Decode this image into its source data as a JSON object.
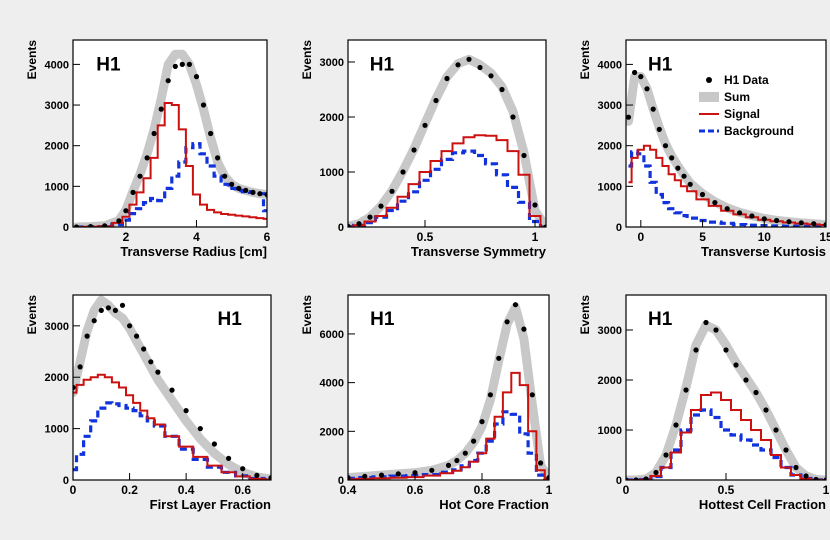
{
  "colors": {
    "data": "#000000",
    "sum": "#c8c8c8",
    "signal": "#cc1111",
    "background": "#1133dd",
    "frame": "#000000",
    "figure_bg": "#eeeeee",
    "panel_bg": "#ffffff"
  },
  "chart_data": [
    {
      "type": "line",
      "title": "H1",
      "xlabel": "Transverse Radius [cm]",
      "ylabel": "Events",
      "xlim": [
        0.5,
        6.0
      ],
      "ylim": [
        0,
        4600
      ],
      "x_ticks": [
        2,
        4,
        6
      ],
      "x_tick_labels": [
        "2",
        "4",
        "6"
      ],
      "y_ticks": [
        0,
        1000,
        2000,
        3000,
        4000
      ],
      "y_tick_labels": [
        "0",
        "1000",
        "2000",
        "3000",
        "4000"
      ],
      "x": [
        0.6,
        1.0,
        1.4,
        1.8,
        2.0,
        2.2,
        2.4,
        2.6,
        2.8,
        3.0,
        3.2,
        3.4,
        3.6,
        3.8,
        4.0,
        4.2,
        4.4,
        4.6,
        4.8,
        5.0,
        5.2,
        5.4,
        5.6,
        5.8,
        6.0
      ],
      "series": [
        {
          "name": "H1 Data",
          "style": "points",
          "values": [
            0,
            10,
            30,
            150,
            400,
            850,
            1250,
            1700,
            2300,
            2900,
            3600,
            3950,
            4000,
            4000,
            3700,
            3000,
            2300,
            1700,
            1250,
            1050,
            950,
            900,
            850,
            820,
            800
          ]
        },
        {
          "name": "Sum",
          "style": "band",
          "values": [
            0,
            10,
            30,
            160,
            420,
            880,
            1300,
            1800,
            2400,
            3150,
            4000,
            4250,
            4250,
            4000,
            3500,
            2900,
            2200,
            1600,
            1250,
            1050,
            950,
            900,
            850,
            820,
            800
          ]
        },
        {
          "name": "Signal",
          "style": "step",
          "values": [
            0,
            5,
            20,
            100,
            250,
            550,
            850,
            1200,
            1700,
            2500,
            3050,
            3000,
            2400,
            1500,
            800,
            550,
            420,
            360,
            320,
            300,
            280,
            260,
            240,
            220,
            200
          ]
        },
        {
          "name": "Background",
          "style": "dashed",
          "values": [
            0,
            5,
            10,
            60,
            170,
            330,
            450,
            600,
            700,
            650,
            950,
            1250,
            1600,
            1950,
            2050,
            1800,
            1500,
            1250,
            1050,
            950,
            900,
            870,
            850,
            820,
            400
          ]
        }
      ]
    },
    {
      "type": "line",
      "title": "H1",
      "xlabel": "Transverse Symmetry",
      "ylabel": "Events",
      "xlim": [
        0.15,
        1.05
      ],
      "ylim": [
        0,
        3400
      ],
      "x_ticks": [
        0.5,
        1.0
      ],
      "x_tick_labels": [
        "0.5",
        "1"
      ],
      "y_ticks": [
        0,
        1000,
        2000,
        3000
      ],
      "y_tick_labels": [
        "0",
        "1000",
        "2000",
        "3000"
      ],
      "x": [
        0.15,
        0.2,
        0.25,
        0.3,
        0.35,
        0.4,
        0.45,
        0.5,
        0.55,
        0.6,
        0.65,
        0.7,
        0.75,
        0.8,
        0.85,
        0.9,
        0.95,
        1.0,
        1.05
      ],
      "series": [
        {
          "name": "H1 Data",
          "style": "points",
          "values": [
            10,
            60,
            180,
            380,
            650,
            1000,
            1400,
            1850,
            2300,
            2700,
            2950,
            3050,
            2900,
            2750,
            2500,
            2000,
            1300,
            400,
            0
          ]
        },
        {
          "name": "Sum",
          "style": "band",
          "values": [
            10,
            60,
            180,
            380,
            660,
            1020,
            1420,
            1880,
            2330,
            2730,
            2970,
            3050,
            2950,
            2800,
            2550,
            2100,
            1350,
            300,
            0
          ]
        },
        {
          "name": "Signal",
          "style": "step",
          "values": [
            5,
            30,
            100,
            200,
            350,
            550,
            780,
            1000,
            1200,
            1380,
            1520,
            1630,
            1670,
            1660,
            1580,
            1380,
            950,
            200,
            0
          ]
        },
        {
          "name": "Background",
          "style": "dashed",
          "values": [
            5,
            30,
            80,
            180,
            300,
            470,
            640,
            850,
            1050,
            1230,
            1350,
            1380,
            1300,
            1150,
            950,
            720,
            450,
            100,
            0
          ]
        }
      ]
    },
    {
      "type": "line",
      "title": "H1",
      "xlabel": "Transverse Kurtosis",
      "ylabel": "Events",
      "xlim": [
        -1.2,
        15.0
      ],
      "ylim": [
        0,
        4600
      ],
      "x_ticks": [
        0,
        5,
        10,
        15
      ],
      "x_tick_labels": [
        "0",
        "5",
        "10",
        "15"
      ],
      "y_ticks": [
        0,
        1000,
        2000,
        3000,
        4000
      ],
      "y_tick_labels": [
        "0",
        "1000",
        "2000",
        "3000",
        "4000"
      ],
      "x": [
        -1.0,
        -0.5,
        0,
        0.5,
        1,
        1.5,
        2,
        2.5,
        3,
        3.5,
        4,
        5,
        6,
        7,
        8,
        9,
        10,
        11,
        12,
        13,
        14,
        15
      ],
      "series": [
        {
          "name": "H1 Data",
          "style": "points",
          "values": [
            2700,
            3800,
            3700,
            3400,
            2900,
            2400,
            2000,
            1700,
            1450,
            1250,
            1050,
            800,
            600,
            450,
            350,
            270,
            200,
            160,
            130,
            100,
            80,
            60
          ]
        },
        {
          "name": "Sum",
          "style": "band",
          "values": [
            2600,
            3700,
            3700,
            3400,
            2900,
            2450,
            2050,
            1750,
            1500,
            1280,
            1080,
            820,
            620,
            470,
            360,
            280,
            210,
            165,
            130,
            100,
            80,
            60
          ]
        },
        {
          "name": "Signal",
          "style": "step",
          "values": [
            1100,
            1700,
            1900,
            2000,
            1900,
            1700,
            1500,
            1300,
            1150,
            1000,
            880,
            680,
            520,
            400,
            310,
            240,
            180,
            140,
            110,
            85,
            65,
            50
          ]
        },
        {
          "name": "Background",
          "style": "dashed",
          "values": [
            1500,
            1850,
            1800,
            1500,
            1100,
            800,
            600,
            450,
            350,
            280,
            220,
            160,
            120,
            90,
            60,
            45,
            35,
            25,
            20,
            15,
            10,
            10
          ]
        }
      ],
      "legend": {
        "position": "top-right",
        "entries": [
          "H1 Data",
          "Sum",
          "Signal",
          "Background"
        ]
      }
    },
    {
      "type": "line",
      "title": "H1",
      "xlabel": "First Layer Fraction",
      "ylabel": "Events",
      "xlim": [
        0,
        0.7
      ],
      "ylim": [
        0,
        3600
      ],
      "x_ticks": [
        0,
        0.2,
        0.4,
        0.6
      ],
      "x_tick_labels": [
        "0",
        "0.2",
        "0.4",
        "0.6"
      ],
      "y_ticks": [
        0,
        1000,
        2000,
        3000
      ],
      "y_tick_labels": [
        "0",
        "1000",
        "2000",
        "3000"
      ],
      "x": [
        0.0,
        0.025,
        0.05,
        0.075,
        0.1,
        0.125,
        0.15,
        0.175,
        0.2,
        0.225,
        0.25,
        0.275,
        0.3,
        0.35,
        0.4,
        0.45,
        0.5,
        0.55,
        0.6,
        0.65,
        0.7
      ],
      "series": [
        {
          "name": "H1 Data",
          "style": "points",
          "values": [
            1800,
            2200,
            2800,
            3100,
            3300,
            3350,
            3300,
            3400,
            3000,
            2800,
            2550,
            2300,
            2100,
            1750,
            1350,
            1000,
            700,
            420,
            220,
            90,
            40
          ]
        },
        {
          "name": "Sum",
          "style": "band",
          "values": [
            1700,
            2300,
            2900,
            3300,
            3500,
            3400,
            3250,
            3150,
            2950,
            2700,
            2450,
            2200,
            1950,
            1550,
            1150,
            800,
            520,
            300,
            150,
            60,
            20
          ]
        },
        {
          "name": "Signal",
          "style": "step",
          "values": [
            1700,
            1850,
            1950,
            2000,
            2050,
            2000,
            1900,
            1800,
            1650,
            1500,
            1350,
            1200,
            1080,
            850,
            650,
            450,
            280,
            150,
            70,
            25,
            10
          ]
        },
        {
          "name": "Background",
          "style": "dashed",
          "values": [
            200,
            500,
            850,
            1150,
            1400,
            1500,
            1480,
            1450,
            1400,
            1350,
            1250,
            1150,
            1050,
            850,
            600,
            400,
            250,
            150,
            80,
            30,
            10
          ]
        }
      ]
    },
    {
      "type": "line",
      "title": "H1",
      "xlabel": "Hot Core Fraction",
      "ylabel": "Events",
      "xlim": [
        0.4,
        1.0
      ],
      "ylim": [
        0,
        7600
      ],
      "x_ticks": [
        0.4,
        0.6,
        0.8,
        1.0
      ],
      "x_tick_labels": [
        "0.4",
        "0.6",
        "0.8",
        "1"
      ],
      "y_ticks": [
        0,
        2000,
        4000,
        6000
      ],
      "y_tick_labels": [
        "0",
        "2000",
        "4000",
        "6000"
      ],
      "x": [
        0.4,
        0.45,
        0.5,
        0.55,
        0.6,
        0.65,
        0.7,
        0.725,
        0.75,
        0.775,
        0.8,
        0.825,
        0.85,
        0.875,
        0.9,
        0.925,
        0.95,
        0.975,
        1.0
      ],
      "series": [
        {
          "name": "H1 Data",
          "style": "points",
          "values": [
            100,
            150,
            200,
            250,
            300,
            400,
            600,
            800,
            1100,
            1600,
            2400,
            3500,
            5000,
            6500,
            7200,
            6200,
            3500,
            700,
            100
          ]
        },
        {
          "name": "Sum",
          "style": "band",
          "values": [
            100,
            150,
            200,
            250,
            300,
            400,
            600,
            800,
            1100,
            1550,
            2200,
            3300,
            4900,
            6400,
            7100,
            5800,
            3100,
            600,
            100
          ]
        },
        {
          "name": "Signal",
          "style": "step",
          "values": [
            30,
            50,
            70,
            90,
            120,
            180,
            280,
            380,
            520,
            750,
            1100,
            1700,
            2600,
            3600,
            4400,
            3900,
            2000,
            400,
            50
          ]
        },
        {
          "name": "Background",
          "style": "dashed",
          "values": [
            70,
            100,
            130,
            160,
            180,
            220,
            320,
            420,
            580,
            800,
            1100,
            1600,
            2300,
            2800,
            2700,
            1900,
            1100,
            200,
            50
          ]
        }
      ]
    },
    {
      "type": "line",
      "title": "H1",
      "xlabel": "Hottest Cell Fraction",
      "ylabel": "Events",
      "xlim": [
        0,
        1.0
      ],
      "ylim": [
        0,
        3700
      ],
      "x_ticks": [
        0,
        0.5,
        1.0
      ],
      "x_tick_labels": [
        "0",
        "0.5",
        "1"
      ],
      "y_ticks": [
        0,
        1000,
        2000,
        3000
      ],
      "y_tick_labels": [
        "0",
        "1000",
        "2000",
        "3000"
      ],
      "x": [
        0.0,
        0.05,
        0.1,
        0.15,
        0.2,
        0.25,
        0.3,
        0.35,
        0.4,
        0.45,
        0.5,
        0.55,
        0.6,
        0.65,
        0.7,
        0.75,
        0.8,
        0.85,
        0.9,
        0.95,
        1.0
      ],
      "series": [
        {
          "name": "H1 Data",
          "style": "points",
          "values": [
            0,
            0,
            20,
            150,
            500,
            1100,
            1800,
            2600,
            3150,
            3000,
            2600,
            2300,
            2000,
            1750,
            1400,
            1000,
            600,
            250,
            80,
            10,
            0
          ]
        },
        {
          "name": "Sum",
          "style": "band",
          "values": [
            0,
            0,
            20,
            150,
            500,
            1100,
            1850,
            2700,
            3100,
            3000,
            2700,
            2350,
            2050,
            1750,
            1400,
            1000,
            600,
            250,
            80,
            10,
            0
          ]
        },
        {
          "name": "Signal",
          "style": "step",
          "values": [
            0,
            0,
            10,
            80,
            250,
            550,
            950,
            1400,
            1700,
            1750,
            1600,
            1400,
            1200,
            1000,
            800,
            500,
            250,
            100,
            30,
            5,
            0
          ]
        },
        {
          "name": "Background",
          "style": "dashed",
          "values": [
            0,
            0,
            10,
            70,
            250,
            600,
            1000,
            1300,
            1400,
            1250,
            1000,
            900,
            800,
            700,
            600,
            450,
            250,
            100,
            30,
            5,
            0
          ]
        }
      ]
    }
  ]
}
